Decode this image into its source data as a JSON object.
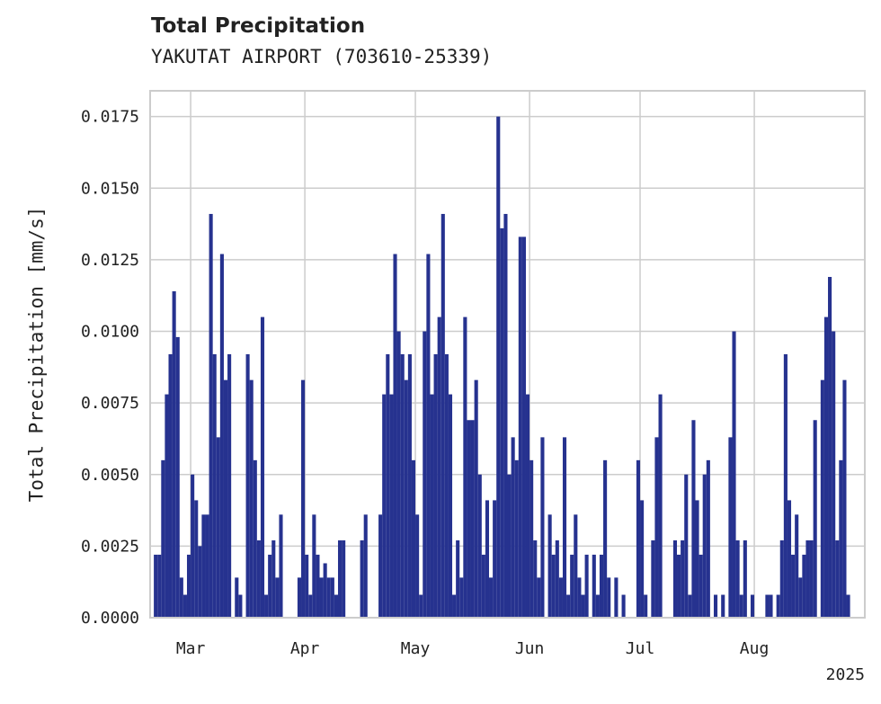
{
  "header": {
    "title": "Total Precipitation",
    "subtitle": "YAKUTAT AIRPORT (703610-25339)"
  },
  "chart_data": {
    "type": "bar",
    "title": "Total Precipitation",
    "subtitle": "YAKUTAT AIRPORT (703610-25339)",
    "xlabel": "",
    "ylabel": "Total Precipitation [mm/s]",
    "x_axis_type": "date",
    "xlim": [
      "2025-02-18",
      "2025-08-31"
    ],
    "ylim": [
      0,
      0.0184
    ],
    "yticks": [
      0.0,
      0.0025,
      0.005,
      0.0075,
      0.01,
      0.0125,
      0.015,
      0.0175
    ],
    "ytick_labels": [
      "0.0000",
      "0.0025",
      "0.0050",
      "0.0075",
      "0.0100",
      "0.0125",
      "0.0150",
      "0.0175"
    ],
    "xticks": [
      "2025-03-01",
      "2025-04-01",
      "2025-05-01",
      "2025-06-01",
      "2025-07-01",
      "2025-08-01"
    ],
    "xtick_labels": [
      "Mar",
      "Apr",
      "May",
      "Jun",
      "Jul",
      "Aug"
    ],
    "year_label": "2025",
    "grid": true,
    "bar_color": "#26328f",
    "series": [
      {
        "values": [
          [
            "2025-02-19",
            0.0022
          ],
          [
            "2025-02-20",
            0.0022
          ],
          [
            "2025-02-21",
            0.0055
          ],
          [
            "2025-02-22",
            0.0078
          ],
          [
            "2025-02-23",
            0.0092
          ],
          [
            "2025-02-24",
            0.0114
          ],
          [
            "2025-02-25",
            0.0098
          ],
          [
            "2025-02-26",
            0.0014
          ],
          [
            "2025-02-27",
            0.0008
          ],
          [
            "2025-02-28",
            0.0022
          ],
          [
            "2025-03-01",
            0.005
          ],
          [
            "2025-03-02",
            0.0041
          ],
          [
            "2025-03-03",
            0.0025
          ],
          [
            "2025-03-04",
            0.0036
          ],
          [
            "2025-03-05",
            0.0036
          ],
          [
            "2025-03-06",
            0.0141
          ],
          [
            "2025-03-07",
            0.0092
          ],
          [
            "2025-03-08",
            0.0063
          ],
          [
            "2025-03-09",
            0.0127
          ],
          [
            "2025-03-10",
            0.0083
          ],
          [
            "2025-03-11",
            0.0092
          ],
          [
            "2025-03-13",
            0.0014
          ],
          [
            "2025-03-14",
            0.0008
          ],
          [
            "2025-03-16",
            0.0092
          ],
          [
            "2025-03-17",
            0.0083
          ],
          [
            "2025-03-18",
            0.0055
          ],
          [
            "2025-03-19",
            0.0027
          ],
          [
            "2025-03-20",
            0.0105
          ],
          [
            "2025-03-21",
            0.0008
          ],
          [
            "2025-03-22",
            0.0022
          ],
          [
            "2025-03-23",
            0.0027
          ],
          [
            "2025-03-24",
            0.0014
          ],
          [
            "2025-03-25",
            0.0036
          ],
          [
            "2025-03-30",
            0.0014
          ],
          [
            "2025-03-31",
            0.0083
          ],
          [
            "2025-04-01",
            0.0022
          ],
          [
            "2025-04-02",
            0.0008
          ],
          [
            "2025-04-03",
            0.0036
          ],
          [
            "2025-04-04",
            0.0022
          ],
          [
            "2025-04-05",
            0.0014
          ],
          [
            "2025-04-06",
            0.0019
          ],
          [
            "2025-04-07",
            0.0014
          ],
          [
            "2025-04-08",
            0.0014
          ],
          [
            "2025-04-09",
            0.0008
          ],
          [
            "2025-04-10",
            0.0027
          ],
          [
            "2025-04-11",
            0.0027
          ],
          [
            "2025-04-16",
            0.0027
          ],
          [
            "2025-04-17",
            0.0036
          ],
          [
            "2025-04-21",
            0.0036
          ],
          [
            "2025-04-22",
            0.0078
          ],
          [
            "2025-04-23",
            0.0092
          ],
          [
            "2025-04-24",
            0.0078
          ],
          [
            "2025-04-25",
            0.0127
          ],
          [
            "2025-04-26",
            0.01
          ],
          [
            "2025-04-27",
            0.0092
          ],
          [
            "2025-04-28",
            0.0083
          ],
          [
            "2025-04-29",
            0.0092
          ],
          [
            "2025-04-30",
            0.0055
          ],
          [
            "2025-05-01",
            0.0036
          ],
          [
            "2025-05-02",
            0.0008
          ],
          [
            "2025-05-03",
            0.01
          ],
          [
            "2025-05-04",
            0.0127
          ],
          [
            "2025-05-05",
            0.0078
          ],
          [
            "2025-05-06",
            0.0092
          ],
          [
            "2025-05-07",
            0.0105
          ],
          [
            "2025-05-08",
            0.0141
          ],
          [
            "2025-05-09",
            0.0092
          ],
          [
            "2025-05-10",
            0.0078
          ],
          [
            "2025-05-11",
            0.0008
          ],
          [
            "2025-05-12",
            0.0027
          ],
          [
            "2025-05-13",
            0.0014
          ],
          [
            "2025-05-14",
            0.0105
          ],
          [
            "2025-05-15",
            0.0069
          ],
          [
            "2025-05-16",
            0.0069
          ],
          [
            "2025-05-17",
            0.0083
          ],
          [
            "2025-05-18",
            0.005
          ],
          [
            "2025-05-19",
            0.0022
          ],
          [
            "2025-05-20",
            0.0041
          ],
          [
            "2025-05-21",
            0.0014
          ],
          [
            "2025-05-22",
            0.0041
          ],
          [
            "2025-05-23",
            0.0175
          ],
          [
            "2025-05-24",
            0.0136
          ],
          [
            "2025-05-25",
            0.0141
          ],
          [
            "2025-05-26",
            0.005
          ],
          [
            "2025-05-27",
            0.0063
          ],
          [
            "2025-05-28",
            0.0055
          ],
          [
            "2025-05-29",
            0.0133
          ],
          [
            "2025-05-30",
            0.0133
          ],
          [
            "2025-05-31",
            0.0078
          ],
          [
            "2025-06-01",
            0.0055
          ],
          [
            "2025-06-02",
            0.0027
          ],
          [
            "2025-06-03",
            0.0014
          ],
          [
            "2025-06-04",
            0.0063
          ],
          [
            "2025-06-06",
            0.0036
          ],
          [
            "2025-06-07",
            0.0022
          ],
          [
            "2025-06-08",
            0.0027
          ],
          [
            "2025-06-09",
            0.0014
          ],
          [
            "2025-06-10",
            0.0063
          ],
          [
            "2025-06-11",
            0.0008
          ],
          [
            "2025-06-12",
            0.0022
          ],
          [
            "2025-06-13",
            0.0036
          ],
          [
            "2025-06-14",
            0.0014
          ],
          [
            "2025-06-15",
            0.0008
          ],
          [
            "2025-06-16",
            0.0022
          ],
          [
            "2025-06-18",
            0.0022
          ],
          [
            "2025-06-19",
            0.0008
          ],
          [
            "2025-06-20",
            0.0022
          ],
          [
            "2025-06-21",
            0.0055
          ],
          [
            "2025-06-22",
            0.0014
          ],
          [
            "2025-06-24",
            0.0014
          ],
          [
            "2025-06-26",
            0.0008
          ],
          [
            "2025-06-30",
            0.0055
          ],
          [
            "2025-07-01",
            0.0041
          ],
          [
            "2025-07-02",
            0.0008
          ],
          [
            "2025-07-04",
            0.0027
          ],
          [
            "2025-07-05",
            0.0063
          ],
          [
            "2025-07-06",
            0.0078
          ],
          [
            "2025-07-10",
            0.0027
          ],
          [
            "2025-07-11",
            0.0022
          ],
          [
            "2025-07-12",
            0.0027
          ],
          [
            "2025-07-13",
            0.005
          ],
          [
            "2025-07-14",
            0.0008
          ],
          [
            "2025-07-15",
            0.0069
          ],
          [
            "2025-07-16",
            0.0041
          ],
          [
            "2025-07-17",
            0.0022
          ],
          [
            "2025-07-18",
            0.005
          ],
          [
            "2025-07-19",
            0.0055
          ],
          [
            "2025-07-21",
            0.0008
          ],
          [
            "2025-07-23",
            0.0008
          ],
          [
            "2025-07-25",
            0.0063
          ],
          [
            "2025-07-26",
            0.01
          ],
          [
            "2025-07-27",
            0.0027
          ],
          [
            "2025-07-28",
            0.0008
          ],
          [
            "2025-07-29",
            0.0027
          ],
          [
            "2025-07-31",
            0.0008
          ],
          [
            "2025-08-04",
            0.0008
          ],
          [
            "2025-08-05",
            0.0008
          ],
          [
            "2025-08-07",
            0.0008
          ],
          [
            "2025-08-08",
            0.0027
          ],
          [
            "2025-08-09",
            0.0092
          ],
          [
            "2025-08-10",
            0.0041
          ],
          [
            "2025-08-11",
            0.0022
          ],
          [
            "2025-08-12",
            0.0036
          ],
          [
            "2025-08-13",
            0.0014
          ],
          [
            "2025-08-14",
            0.0022
          ],
          [
            "2025-08-15",
            0.0027
          ],
          [
            "2025-08-16",
            0.0027
          ],
          [
            "2025-08-17",
            0.0069
          ],
          [
            "2025-08-19",
            0.0083
          ],
          [
            "2025-08-20",
            0.0105
          ],
          [
            "2025-08-21",
            0.0119
          ],
          [
            "2025-08-22",
            0.01
          ],
          [
            "2025-08-23",
            0.0027
          ],
          [
            "2025-08-24",
            0.0055
          ],
          [
            "2025-08-25",
            0.0083
          ],
          [
            "2025-08-26",
            0.0008
          ]
        ]
      }
    ]
  }
}
